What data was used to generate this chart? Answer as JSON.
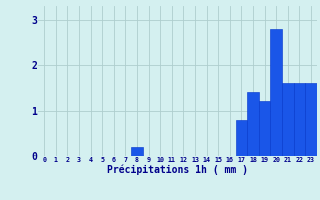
{
  "hours": [
    0,
    1,
    2,
    3,
    4,
    5,
    6,
    7,
    8,
    9,
    10,
    11,
    12,
    13,
    14,
    15,
    16,
    17,
    18,
    19,
    20,
    21,
    22,
    23
  ],
  "values": [
    0,
    0,
    0,
    0,
    0,
    0,
    0,
    0,
    0.2,
    0,
    0,
    0,
    0,
    0,
    0,
    0,
    0,
    0.8,
    1.4,
    1.2,
    2.8,
    1.6,
    1.6,
    1.6
  ],
  "bar_color": "#1a56e8",
  "bar_edge_color": "#0033cc",
  "background_color": "#d4f0f0",
  "grid_color": "#aecece",
  "xlabel": "Précipitations 1h ( mm )",
  "xlabel_color": "#00008b",
  "tick_color": "#00008b",
  "ylabel_ticks": [
    0,
    1,
    2,
    3
  ],
  "ylim": [
    0,
    3.3
  ],
  "xlim": [
    -0.5,
    23.5
  ]
}
